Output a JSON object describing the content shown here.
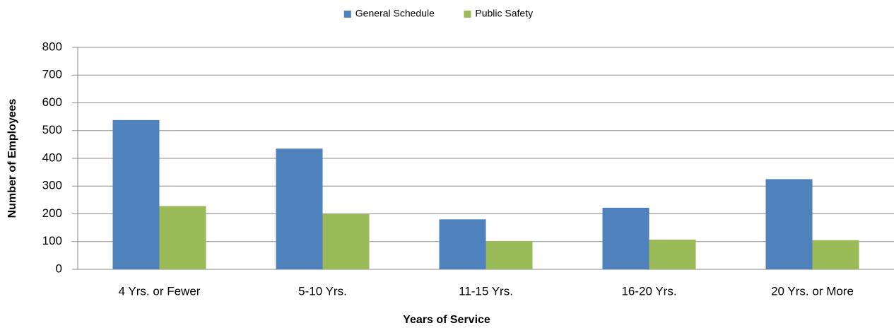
{
  "chart_data": {
    "type": "bar",
    "x_label": "Years of Service",
    "y_label": "Number of Employees",
    "categories": [
      "4 Yrs. or Fewer",
      "5-10 Yrs.",
      "11-15 Yrs.",
      "16-20 Yrs.",
      "20 Yrs. or More"
    ],
    "series": [
      {
        "name": "General Schedule",
        "color": "#4f81bd",
        "values": [
          538,
          435,
          180,
          222,
          325
        ]
      },
      {
        "name": "Public Safety",
        "color": "#9bbb59",
        "values": [
          228,
          200,
          102,
          107,
          105
        ]
      }
    ],
    "ylim": [
      0,
      800
    ],
    "yticks": [
      0,
      100,
      200,
      300,
      400,
      500,
      600,
      700,
      800
    ],
    "grid": true,
    "legend": "top"
  }
}
